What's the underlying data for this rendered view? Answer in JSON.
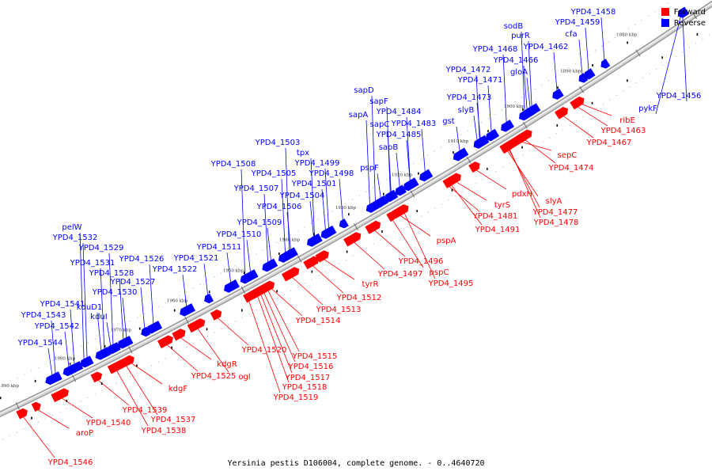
{
  "caption": "Yersinia pestis D106004, complete genome. - 0..4640720",
  "legend": {
    "forward_label": "Forward",
    "forward_color": "#ff0000",
    "reverse_label": "Reverse",
    "reverse_color": "#0000ff"
  },
  "axis": {
    "ticks": [
      "1870 kbp",
      "1880 kbp",
      "1890 kbp",
      "1900 kbp",
      "1910 kbp",
      "1920 kbp",
      "1930 kbp",
      "1940 kbp",
      "1950 kbp",
      "1960 kbp",
      "1970 kbp",
      "1980 kbp",
      "1990 kbp"
    ]
  },
  "genes_reverse": [
    "YPD4_1458",
    "YPD4_1459",
    "sodB",
    "purR",
    "cfa",
    "YPD4_1462",
    "YPD4_1468",
    "YPD4_1466",
    "gloA",
    "YPD4_1472",
    "YPD4_1471",
    "YPD4_1473",
    "slyB",
    "sapD",
    "sapF",
    "YPD4_1484",
    "sapA",
    "sapC",
    "YPD4_1483",
    "gst",
    "YPD4_1485",
    "sapB",
    "pspF",
    "YPD4_1503",
    "tpx",
    "YPD4_1508",
    "YPD4_1499",
    "YPD4_1505",
    "YPD4_1498",
    "YPD4_1501",
    "YPD4_1507",
    "YPD4_1504",
    "YPD4_1506",
    "YPD4_1509",
    "YPD4_1510",
    "YPD4_1511",
    "pelW",
    "YPD4_1532",
    "YPD4_1529",
    "YPD4_1526",
    "YPD4_1521",
    "YPD4_1531",
    "YPD4_1528",
    "YPD4_1522",
    "YPD4_1527",
    "YPD4_1530",
    "kduD1",
    "YPD4_1541",
    "kduI",
    "YPD4_1543",
    "YPD4_1542",
    "YPD4_1544",
    "YPD4_1456",
    "pykF"
  ],
  "genes_forward": [
    "ribE",
    "YPD4_1463",
    "YPD4_1467",
    "sepC",
    "YPD4_1474",
    "slyA",
    "pdxH",
    "tyrS",
    "YPD4_1477",
    "YPD4_1478",
    "YPD4_1481",
    "YPD4_1491",
    "pspA",
    "YPD4_1496",
    "YPD4_1497",
    "pspC",
    "YPD4_1495",
    "tyrR",
    "YPD4_1512",
    "YPD4_1513",
    "YPD4_1514",
    "YPD4_1515",
    "YPD4_1516",
    "YPD4_1517",
    "YPD4_1518",
    "YPD4_1519",
    "YPD4_1520",
    "kdgR",
    "YPD4_1525",
    "ogl",
    "kdgF",
    "YPD4_1539",
    "YPD4_1537",
    "YPD4_1538",
    "YPD4_1540",
    "aroP",
    "YPD4_1546"
  ]
}
